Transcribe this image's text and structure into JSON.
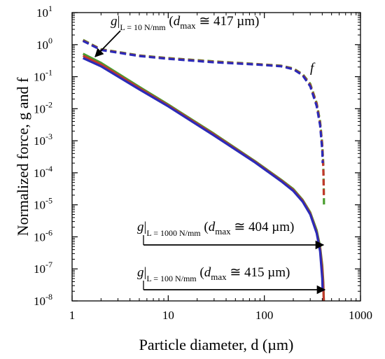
{
  "chart_data": {
    "type": "line",
    "title": "",
    "xlabel": "Particle diameter, d (µm)",
    "ylabel": "Normalized force, g and f",
    "xscale": "log",
    "yscale": "log",
    "xlim": [
      1,
      1000
    ],
    "ylim": [
      1e-08,
      10
    ],
    "grid": false,
    "x_ticks": [
      {
        "value": 1,
        "label": "1"
      },
      {
        "value": 10,
        "label": "10"
      },
      {
        "value": 100,
        "label": "100"
      },
      {
        "value": 1000,
        "label": "1000"
      }
    ],
    "y_ticks": [
      {
        "value": 10,
        "base": "10",
        "exp": "1"
      },
      {
        "value": 1,
        "base": "10",
        "exp": "0"
      },
      {
        "value": 0.1,
        "base": "10",
        "exp": "-1"
      },
      {
        "value": 0.01,
        "base": "10",
        "exp": "-2"
      },
      {
        "value": 0.001,
        "base": "10",
        "exp": "-3"
      },
      {
        "value": 0.0001,
        "base": "10",
        "exp": "-4"
      },
      {
        "value": 1e-05,
        "base": "10",
        "exp": "-5"
      },
      {
        "value": 1e-06,
        "base": "10",
        "exp": "-6"
      },
      {
        "value": 1e-07,
        "base": "10",
        "exp": "-7"
      },
      {
        "value": 1e-08,
        "base": "10",
        "exp": "-8"
      }
    ],
    "series": [
      {
        "key": "f_L10",
        "style": "dashed",
        "color": "#4a9e2f",
        "x": [
          1.3,
          2,
          5,
          10,
          30,
          80,
          150,
          200,
          250,
          300,
          350,
          380,
          400,
          410,
          414,
          416,
          417
        ],
        "y": [
          1.4,
          0.72,
          0.46,
          0.38,
          0.3,
          0.25,
          0.22,
          0.18,
          0.12,
          0.06,
          0.015,
          0.004,
          0.0008,
          0.0002,
          5e-05,
          2e-05,
          1e-05
        ]
      },
      {
        "key": "f_L100",
        "style": "dashed",
        "color": "#c0392b",
        "x": [
          1.3,
          2,
          5,
          10,
          30,
          80,
          150,
          200,
          250,
          300,
          350,
          380,
          400,
          410,
          414,
          415
        ],
        "y": [
          1.35,
          0.7,
          0.45,
          0.37,
          0.29,
          0.245,
          0.215,
          0.175,
          0.115,
          0.055,
          0.014,
          0.0035,
          0.0007,
          0.00015,
          4e-05,
          2e-05
        ]
      },
      {
        "key": "f_L1000",
        "style": "dashed",
        "color": "#2b2bb8",
        "x": [
          1.3,
          2,
          5,
          10,
          30,
          80,
          150,
          200,
          250,
          300,
          350,
          380,
          400,
          404
        ],
        "y": [
          1.3,
          0.68,
          0.44,
          0.36,
          0.28,
          0.24,
          0.21,
          0.17,
          0.11,
          0.05,
          0.012,
          0.003,
          0.0005,
          0.0002
        ]
      },
      {
        "key": "g_L10",
        "style": "solid",
        "color": "#4a9e2f",
        "x": [
          1.3,
          2,
          5,
          10,
          30,
          80,
          150,
          200,
          250,
          300,
          350,
          380,
          400,
          410,
          414,
          416,
          417
        ],
        "y": [
          0.52,
          0.27,
          0.048,
          0.0135,
          0.00165,
          0.00023,
          6e-05,
          3.1e-05,
          1.43e-05,
          5.8e-06,
          1.6e-06,
          4.9e-07,
          1.3e-07,
          4e-08,
          1.5e-08,
          1.05e-08,
          1e-08
        ]
      },
      {
        "key": "g_L100",
        "style": "solid",
        "color": "#c0392b",
        "x": [
          1.3,
          2,
          5,
          10,
          30,
          80,
          150,
          200,
          250,
          300,
          350,
          380,
          400,
          410,
          414,
          415
        ],
        "y": [
          0.45,
          0.24,
          0.044,
          0.0126,
          0.00155,
          0.00022,
          5.7e-05,
          2.9e-05,
          1.35e-05,
          5.4e-06,
          1.4e-06,
          4.2e-07,
          1e-07,
          3e-08,
          1.3e-08,
          1e-08
        ]
      },
      {
        "key": "g_L1000",
        "style": "solid",
        "color": "#2b2bb8",
        "x": [
          1.3,
          2,
          5,
          10,
          30,
          80,
          150,
          200,
          250,
          300,
          350,
          380,
          400,
          404
        ],
        "y": [
          0.38,
          0.21,
          0.04,
          0.0118,
          0.00145,
          0.00021,
          5.4e-05,
          2.7e-05,
          1.25e-05,
          5e-06,
          1.3e-06,
          3.5e-07,
          5e-08,
          2e-08
        ]
      }
    ],
    "annotations": [
      {
        "key": "f_label",
        "text": "f"
      },
      {
        "key": "g_L10",
        "g": "g",
        "sub": "L = 10 N/mm",
        "open": " (",
        "d": "d",
        "dsub": "max",
        "value": " ≅ 417 µm)"
      },
      {
        "key": "g_L1000",
        "g": "g",
        "sub": "L = 1000 N/mm",
        "open": " (",
        "d": "d",
        "dsub": "max",
        "value": " ≅ 404 µm)"
      },
      {
        "key": "g_L100",
        "g": "g",
        "sub": "L = 100 N/mm",
        "open": " (",
        "d": "d",
        "dsub": "max",
        "value": " ≅ 415 µm)"
      }
    ]
  }
}
